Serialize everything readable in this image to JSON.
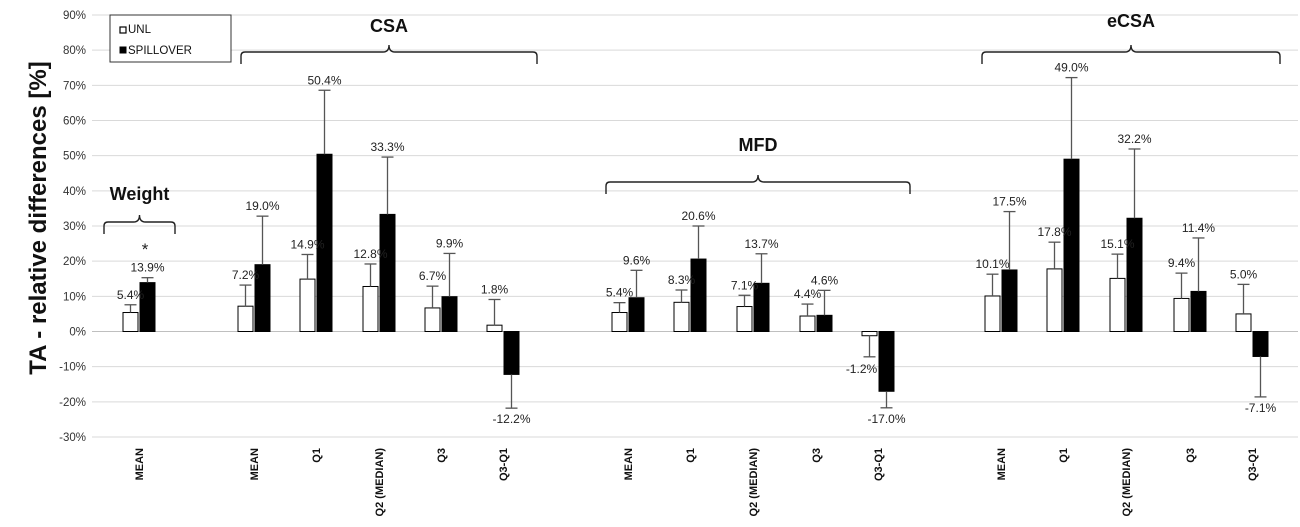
{
  "chart_data": {
    "type": "bar",
    "ylabel": "TA - relative differences [%]",
    "ylim": [
      -30,
      90
    ],
    "yticks": [
      "-30%",
      "-20%",
      "-10%",
      "0%",
      "10%",
      "20%",
      "30%",
      "40%",
      "50%",
      "60%",
      "70%",
      "80%",
      "90%"
    ],
    "grid": true,
    "legend": {
      "placement": "top-left",
      "entries": [
        {
          "name": "UNL",
          "color": "#ffffff"
        },
        {
          "name": "SPILLOVER",
          "color": "#000000"
        }
      ]
    },
    "series_colors": {
      "UNL": "#ffffff",
      "SPILLOVER": "#000000",
      "error": "#555555"
    },
    "groups": [
      {
        "label": "Weight",
        "annotation": "*",
        "categories": [
          {
            "label": "MEAN",
            "unl": 5.4,
            "unl_label": "5.4%",
            "unl_err": 2.2,
            "spill": 13.9,
            "spill_label": "13.9%",
            "spill_err": 1.4
          }
        ]
      },
      {
        "label": "CSA",
        "categories": [
          {
            "label": "MEAN",
            "unl": 7.2,
            "unl_label": "7.2%",
            "unl_err": 6.0,
            "spill": 19.0,
            "spill_label": "19.0%",
            "spill_err": 13.8
          },
          {
            "label": "Q1",
            "unl": 14.9,
            "unl_label": "14.9%",
            "unl_err": 7.0,
            "spill": 50.4,
            "spill_label": "50.4%",
            "spill_err": 18.2
          },
          {
            "label": "Q2 (MEDIAN)",
            "unl": 12.8,
            "unl_label": "12.8%",
            "unl_err": 6.4,
            "spill": 33.3,
            "spill_label": "33.3%",
            "spill_err": 16.3
          },
          {
            "label": "Q3",
            "unl": 6.7,
            "unl_label": "6.7%",
            "unl_err": 6.2,
            "spill": 9.9,
            "spill_label": "9.9%",
            "spill_err": 12.3
          },
          {
            "label": "Q3-Q1",
            "unl": 1.8,
            "unl_label": "1.8%",
            "unl_err": 7.3,
            "spill": -12.2,
            "spill_label": "-12.2%",
            "spill_err": 9.6
          }
        ]
      },
      {
        "label": "MFD",
        "categories": [
          {
            "label": "MEAN",
            "unl": 5.4,
            "unl_label": "5.4%",
            "unl_err": 2.8,
            "spill": 9.6,
            "spill_label": "9.6%",
            "spill_err": 7.8
          },
          {
            "label": "Q1",
            "unl": 8.3,
            "unl_label": "8.3%",
            "unl_err": 3.5,
            "spill": 20.6,
            "spill_label": "20.6%",
            "spill_err": 9.4
          },
          {
            "label": "Q2 (MEDIAN)",
            "unl": 7.1,
            "unl_label": "7.1%",
            "unl_err": 3.2,
            "spill": 13.7,
            "spill_label": "13.7%",
            "spill_err": 8.4
          },
          {
            "label": "Q3",
            "unl": 4.4,
            "unl_label": "4.4%",
            "unl_err": 3.4,
            "spill": 4.6,
            "spill_label": "4.6%",
            "spill_err": 7.1
          },
          {
            "label": "Q3-Q1",
            "unl": -1.2,
            "unl_label": "-1.2%",
            "unl_err": 6.0,
            "spill": -17.0,
            "spill_label": "-17.0%",
            "spill_err": 4.7
          }
        ]
      },
      {
        "label": "eCSA",
        "categories": [
          {
            "label": "MEAN",
            "unl": 10.1,
            "unl_label": "10.1%",
            "unl_err": 6.2,
            "spill": 17.5,
            "spill_label": "17.5%",
            "spill_err": 16.6
          },
          {
            "label": "Q1",
            "unl": 17.8,
            "unl_label": "17.8%",
            "unl_err": 7.6,
            "spill": 49.0,
            "spill_label": "49.0%",
            "spill_err": 23.2
          },
          {
            "label": "Q2 (MEDIAN)",
            "unl": 15.1,
            "unl_label": "15.1%",
            "unl_err": 6.9,
            "spill": 32.2,
            "spill_label": "32.2%",
            "spill_err": 19.7
          },
          {
            "label": "Q3",
            "unl": 9.4,
            "unl_label": "9.4%",
            "unl_err": 7.2,
            "spill": 11.4,
            "spill_label": "11.4%",
            "spill_err": 15.2
          },
          {
            "label": "Q3-Q1",
            "unl": 5.0,
            "unl_label": "5.0%",
            "unl_err": 8.4,
            "spill": -7.1,
            "spill_label": "-7.1%",
            "spill_err": 11.5
          }
        ]
      }
    ]
  }
}
